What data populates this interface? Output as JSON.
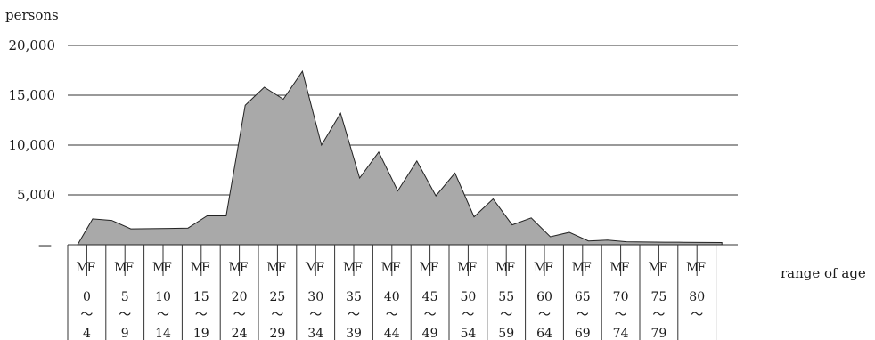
{
  "chart_data": {
    "type": "area",
    "ylabel": "persons",
    "xlabel": "range of age",
    "ylim": [
      0,
      20000
    ],
    "yticks": [
      {
        "value": 20000,
        "label": "20,000"
      },
      {
        "value": 15000,
        "label": "15,000"
      },
      {
        "value": 10000,
        "label": "10,000"
      },
      {
        "value": 5000,
        "label": "5,000"
      },
      {
        "value": 0,
        "label": "—"
      }
    ],
    "sex_labels": [
      "M",
      "F"
    ],
    "age_groups": [
      {
        "top": "0",
        "bottom": "4"
      },
      {
        "top": "5",
        "bottom": "9"
      },
      {
        "top": "10",
        "bottom": "14"
      },
      {
        "top": "15",
        "bottom": "19"
      },
      {
        "top": "20",
        "bottom": "24"
      },
      {
        "top": "25",
        "bottom": "29"
      },
      {
        "top": "30",
        "bottom": "34"
      },
      {
        "top": "35",
        "bottom": "39"
      },
      {
        "top": "40",
        "bottom": "44"
      },
      {
        "top": "45",
        "bottom": "49"
      },
      {
        "top": "50",
        "bottom": "54"
      },
      {
        "top": "55",
        "bottom": "59"
      },
      {
        "top": "60",
        "bottom": "64"
      },
      {
        "top": "65",
        "bottom": "69"
      },
      {
        "top": "70",
        "bottom": "74"
      },
      {
        "top": "75",
        "bottom": "79"
      },
      {
        "top": "80",
        "bottom": ""
      }
    ],
    "tilde": "〜",
    "values": [
      2600,
      2450,
      1600,
      1620,
      1640,
      1680,
      2900,
      2900,
      14000,
      15800,
      14600,
      17400,
      10000,
      13200,
      6700,
      9300,
      5400,
      8400,
      4900,
      7200,
      2800,
      4600,
      2000,
      2700,
      800,
      1250,
      380,
      470,
      300,
      280,
      260,
      250,
      230,
      220
    ],
    "colors": {
      "fill": "#a9a9a9",
      "stroke": "#222222",
      "grid": "#333333"
    }
  }
}
